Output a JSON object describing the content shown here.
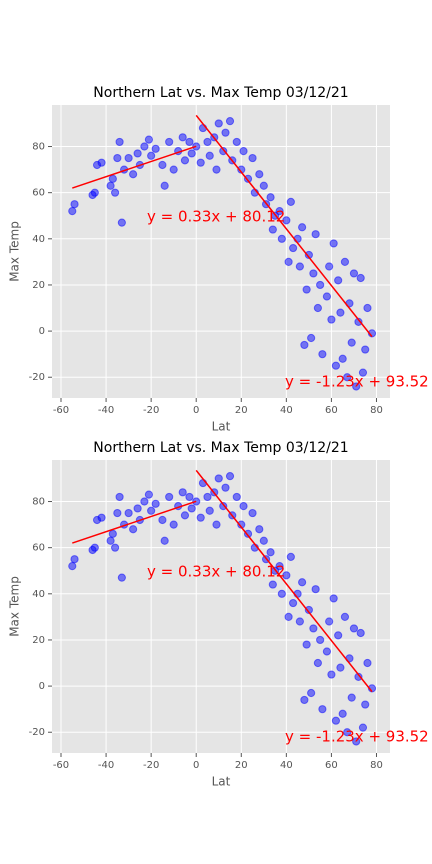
{
  "chart_data": [
    {
      "type": "scatter",
      "title": "Northern Lat vs. Max Temp 03/12/21",
      "xlabel": "Lat",
      "ylabel": "Max Temp",
      "xlim": [
        -64,
        86
      ],
      "ylim": [
        -29,
        98
      ],
      "xticks": [
        -60,
        -40,
        -20,
        0,
        20,
        40,
        60,
        80
      ],
      "yticks": [
        -20,
        0,
        20,
        40,
        60,
        80
      ],
      "grid": true,
      "series": [
        {
          "color": "#0000ff",
          "x": [
            -55,
            -54,
            -46,
            -45,
            -44,
            -42,
            -38,
            -37,
            -36,
            -35,
            -34,
            -33,
            -32,
            -30,
            -28,
            -26,
            -25,
            -23,
            -21,
            -20,
            -18,
            -15,
            -14,
            -12,
            -10,
            -8,
            -6,
            -5,
            -3,
            -2,
            0,
            2,
            3,
            5,
            6,
            8,
            9,
            10,
            12,
            13,
            15,
            16,
            18,
            20,
            21,
            23,
            25,
            26,
            28,
            30,
            31,
            33,
            34,
            35,
            37,
            38,
            40,
            41,
            42,
            43,
            45,
            46,
            47,
            48,
            49,
            50,
            51,
            52,
            53,
            54,
            55,
            56,
            58,
            59,
            60,
            61,
            62,
            63,
            64,
            65,
            66,
            67,
            68,
            69,
            70,
            71,
            72,
            73,
            74,
            75,
            76,
            78
          ],
          "values": [
            52,
            55,
            59,
            60,
            72,
            73,
            63,
            66,
            60,
            75,
            82,
            47,
            70,
            75,
            68,
            77,
            72,
            80,
            83,
            76,
            79,
            72,
            63,
            82,
            70,
            78,
            84,
            74,
            82,
            77,
            80,
            73,
            88,
            82,
            76,
            84,
            70,
            90,
            78,
            86,
            91,
            74,
            82,
            70,
            78,
            66,
            75,
            60,
            68,
            63,
            55,
            58,
            44,
            50,
            52,
            40,
            48,
            30,
            56,
            36,
            40,
            28,
            45,
            -6,
            18,
            33,
            -3,
            25,
            42,
            10,
            20,
            -10,
            15,
            28,
            5,
            38,
            -15,
            22,
            8,
            -12,
            30,
            -20,
            12,
            -5,
            25,
            -24,
            4,
            23,
            -18,
            -8,
            10,
            -1
          ]
        }
      ],
      "fits": [
        {
          "color": "#ff0000",
          "x": [
            -55,
            0
          ],
          "values": [
            62,
            80.1
          ]
        },
        {
          "color": "#ff0000",
          "x": [
            0,
            78
          ],
          "values": [
            93.5,
            -2.4
          ]
        }
      ],
      "annotations": [
        "y = 0.33x + 80.12",
        "y = -1.23x + 93.52"
      ]
    },
    {
      "type": "scatter",
      "title": "Northern Lat vs. Max Temp 03/12/21",
      "xlabel": "Lat",
      "ylabel": "Max Temp",
      "xlim": [
        -64,
        86
      ],
      "ylim": [
        -29,
        98
      ],
      "xticks": [
        -60,
        -40,
        -20,
        0,
        20,
        40,
        60,
        80
      ],
      "yticks": [
        -20,
        0,
        20,
        40,
        60,
        80
      ],
      "grid": true,
      "series": [
        {
          "color": "#0000ff",
          "x": [
            -55,
            -54,
            -46,
            -45,
            -44,
            -42,
            -38,
            -37,
            -36,
            -35,
            -34,
            -33,
            -32,
            -30,
            -28,
            -26,
            -25,
            -23,
            -21,
            -20,
            -18,
            -15,
            -14,
            -12,
            -10,
            -8,
            -6,
            -5,
            -3,
            -2,
            0,
            2,
            3,
            5,
            6,
            8,
            9,
            10,
            12,
            13,
            15,
            16,
            18,
            20,
            21,
            23,
            25,
            26,
            28,
            30,
            31,
            33,
            34,
            35,
            37,
            38,
            40,
            41,
            42,
            43,
            45,
            46,
            47,
            48,
            49,
            50,
            51,
            52,
            53,
            54,
            55,
            56,
            58,
            59,
            60,
            61,
            62,
            63,
            64,
            65,
            66,
            67,
            68,
            69,
            70,
            71,
            72,
            73,
            74,
            75,
            76,
            78
          ],
          "values": [
            52,
            55,
            59,
            60,
            72,
            73,
            63,
            66,
            60,
            75,
            82,
            47,
            70,
            75,
            68,
            77,
            72,
            80,
            83,
            76,
            79,
            72,
            63,
            82,
            70,
            78,
            84,
            74,
            82,
            77,
            80,
            73,
            88,
            82,
            76,
            84,
            70,
            90,
            78,
            86,
            91,
            74,
            82,
            70,
            78,
            66,
            75,
            60,
            68,
            63,
            55,
            58,
            44,
            50,
            52,
            40,
            48,
            30,
            56,
            36,
            40,
            28,
            45,
            -6,
            18,
            33,
            -3,
            25,
            42,
            10,
            20,
            -10,
            15,
            28,
            5,
            38,
            -15,
            22,
            8,
            -12,
            30,
            -20,
            12,
            -5,
            25,
            -24,
            4,
            23,
            -18,
            -8,
            10,
            -1
          ]
        }
      ],
      "fits": [
        {
          "color": "#ff0000",
          "x": [
            -55,
            0
          ],
          "values": [
            62,
            80.1
          ]
        },
        {
          "color": "#ff0000",
          "x": [
            0,
            78
          ],
          "values": [
            93.5,
            -2.4
          ]
        }
      ],
      "annotations": [
        "y = 0.33x + 80.12",
        "y = -1.23x + 93.52"
      ]
    }
  ]
}
